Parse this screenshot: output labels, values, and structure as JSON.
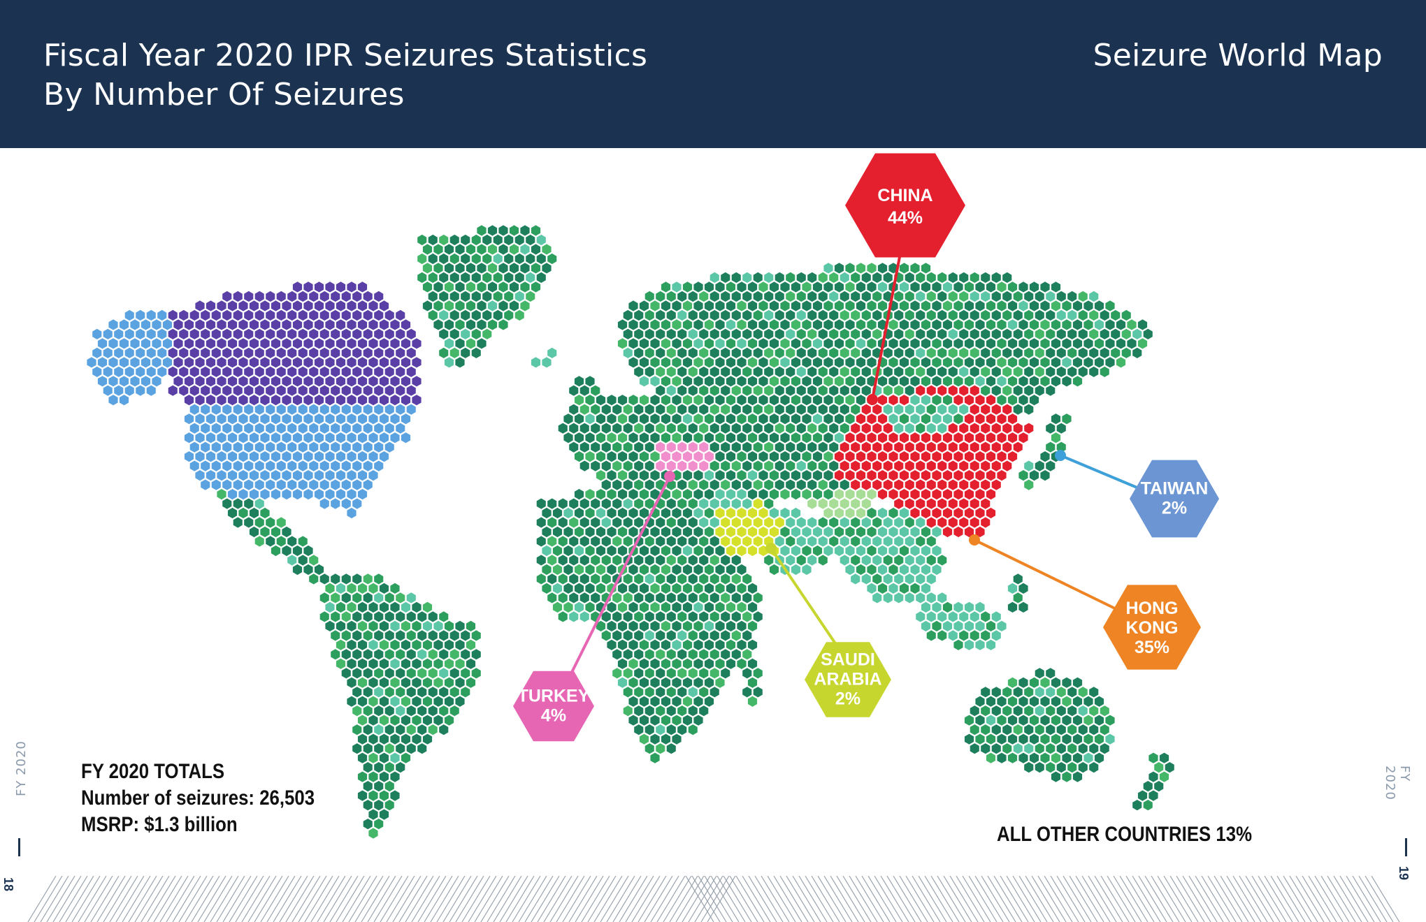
{
  "header": {
    "title_line1": "Fiscal Year 2020 IPR Seizures Statistics",
    "title_line2": "By Number Of Seizures",
    "right_title": "Seizure World Map"
  },
  "callouts": [
    {
      "id": "china",
      "lines": [
        "CHINA",
        "44%"
      ],
      "color": "#e5202e"
    },
    {
      "id": "taiwan",
      "lines": [
        "TAIWAN",
        "2%"
      ],
      "color": "#6b96d3"
    },
    {
      "id": "hongkong",
      "lines": [
        "HONG",
        "KONG",
        "35%"
      ],
      "color": "#ee8424"
    },
    {
      "id": "saudi",
      "lines": [
        "SAUDI",
        "ARABIA",
        "2%"
      ],
      "color": "#c7d62f"
    },
    {
      "id": "turkey",
      "lines": [
        "TURKEY",
        "4%"
      ],
      "color": "#e666b4"
    }
  ],
  "totals": {
    "heading": "FY 2020 TOTALS",
    "seizures": "Number of seizures: 26,503",
    "msrp": "MSRP: $1.3 billion"
  },
  "other": "ALL OTHER COUNTRIES 13%",
  "side": {
    "fy": "FY 2020",
    "page_left": "18",
    "page_right": "19"
  },
  "colors": {
    "canada": "#5a3fa6",
    "usa": "#5ba3e0",
    "china": "#e5202e",
    "turkey": "#f08fcb",
    "saudi": "#d5e02a",
    "greens": [
      "#1d7f5c",
      "#2c9e5e",
      "#45b768",
      "#5cc7a6",
      "#a7dd97"
    ],
    "header": "#1b3350"
  }
}
